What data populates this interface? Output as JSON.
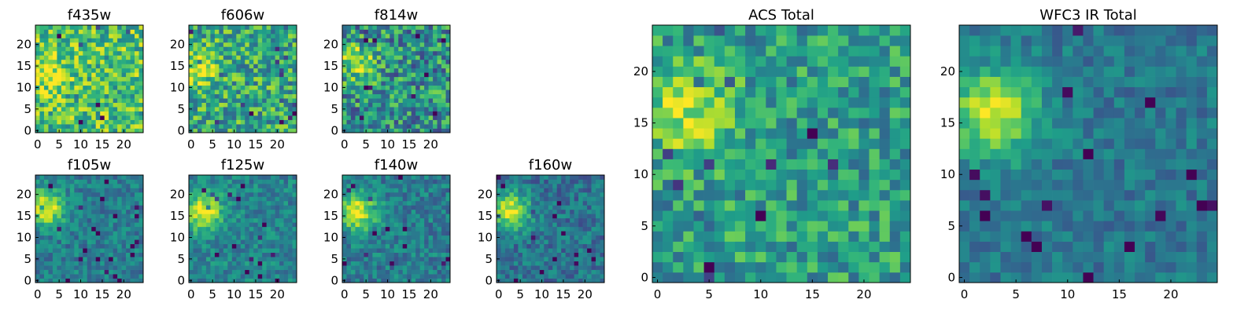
{
  "chart_data": [
    {
      "type": "heatmap",
      "title": "f435w",
      "colormap": "viridis",
      "xticks": [
        "0",
        "5",
        "10",
        "15",
        "20"
      ],
      "yticks": [
        "0",
        "5",
        "10",
        "15",
        "20"
      ],
      "grid_size": 25,
      "source_peak": [
        2,
        14
      ],
      "peak_strength": 0.3,
      "noise": 0.55,
      "base": 0.7,
      "seed": 11
    },
    {
      "type": "heatmap",
      "title": "f606w",
      "colormap": "viridis",
      "xticks": [
        "0",
        "5",
        "10",
        "15",
        "20"
      ],
      "yticks": [
        "0",
        "5",
        "10",
        "15",
        "20"
      ],
      "grid_size": 25,
      "source_peak": [
        2,
        15
      ],
      "peak_strength": 0.35,
      "noise": 0.55,
      "base": 0.6,
      "seed": 22
    },
    {
      "type": "heatmap",
      "title": "f814w",
      "colormap": "viridis",
      "xticks": [
        "0",
        "5",
        "10",
        "15",
        "20"
      ],
      "yticks": [
        "0",
        "5",
        "10",
        "15",
        "20"
      ],
      "grid_size": 25,
      "source_peak": [
        3,
        16
      ],
      "peak_strength": 0.4,
      "noise": 0.6,
      "base": 0.5,
      "seed": 33
    },
    {
      "type": "heatmap",
      "title": "f105w",
      "colormap": "viridis",
      "xticks": [
        "0",
        "5",
        "10",
        "15",
        "20"
      ],
      "yticks": [
        "0",
        "5",
        "10",
        "15",
        "20"
      ],
      "grid_size": 25,
      "source_peak": [
        2,
        17
      ],
      "peak_strength": 0.55,
      "noise": 0.3,
      "base": 0.42,
      "seed": 44
    },
    {
      "type": "heatmap",
      "title": "f125w",
      "colormap": "viridis",
      "xticks": [
        "0",
        "5",
        "10",
        "15",
        "20"
      ],
      "yticks": [
        "0",
        "5",
        "10",
        "15",
        "20"
      ],
      "grid_size": 25,
      "source_peak": [
        3,
        16
      ],
      "peak_strength": 0.55,
      "noise": 0.3,
      "base": 0.45,
      "seed": 55
    },
    {
      "type": "heatmap",
      "title": "f140w",
      "colormap": "viridis",
      "xticks": [
        "0",
        "5",
        "10",
        "15",
        "20"
      ],
      "yticks": [
        "0",
        "5",
        "10",
        "15",
        "20"
      ],
      "grid_size": 25,
      "source_peak": [
        3,
        16
      ],
      "peak_strength": 0.55,
      "noise": 0.32,
      "base": 0.42,
      "seed": 66
    },
    {
      "type": "heatmap",
      "title": "f160w",
      "colormap": "viridis",
      "xticks": [
        "0",
        "5",
        "10",
        "15",
        "20"
      ],
      "yticks": [
        "0",
        "5",
        "10",
        "15",
        "20"
      ],
      "grid_size": 25,
      "source_peak": [
        3,
        16
      ],
      "peak_strength": 0.6,
      "noise": 0.32,
      "base": 0.38,
      "seed": 77
    },
    {
      "type": "heatmap",
      "title": "ACS Total",
      "colormap": "viridis",
      "xticks": [
        "0",
        "5",
        "10",
        "15",
        "20"
      ],
      "yticks": [
        "0",
        "5",
        "10",
        "15",
        "20"
      ],
      "grid_size": 25,
      "source_peak": [
        3,
        16
      ],
      "peak_strength": 0.35,
      "noise": 0.45,
      "base": 0.55,
      "seed": 88
    },
    {
      "type": "heatmap",
      "title": "WFC3 IR Total",
      "colormap": "viridis",
      "xticks": [
        "0",
        "5",
        "10",
        "15",
        "20"
      ],
      "yticks": [
        "0",
        "5",
        "10",
        "15",
        "20"
      ],
      "grid_size": 25,
      "source_peak": [
        3,
        16
      ],
      "peak_strength": 0.55,
      "noise": 0.25,
      "base": 0.4,
      "seed": 99
    }
  ]
}
